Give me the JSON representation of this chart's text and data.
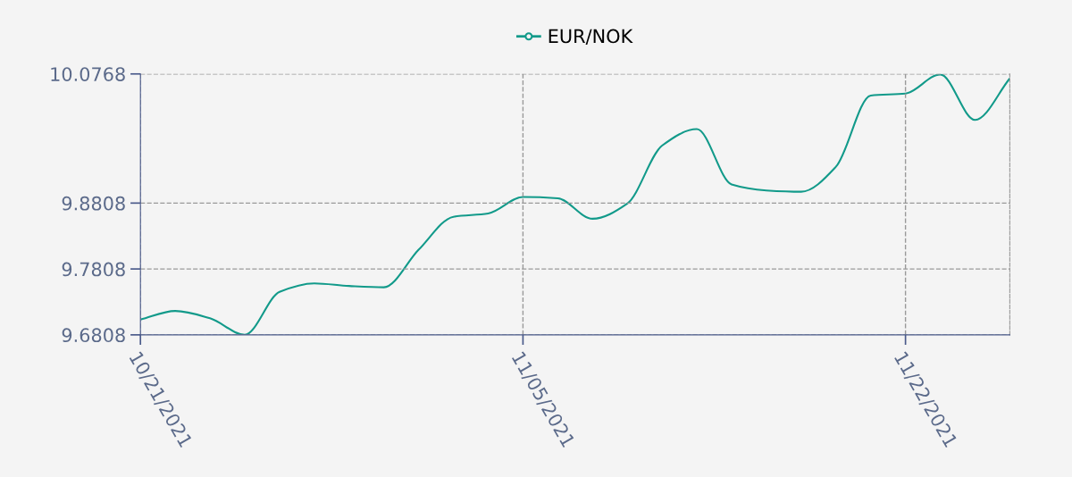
{
  "chart_data": {
    "type": "line",
    "categories": [
      "10/21/2021",
      null,
      null,
      null,
      null,
      null,
      null,
      null,
      null,
      null,
      null,
      "11/05/2021",
      null,
      null,
      null,
      null,
      null,
      null,
      null,
      null,
      null,
      null,
      "11/22/2021",
      null,
      null,
      null
    ],
    "series": [
      {
        "name": "EUR/NOK",
        "color": "#129a8a",
        "values": [
          9.704,
          9.717,
          9.706,
          9.681,
          9.746,
          9.759,
          9.755,
          9.753,
          9.81,
          9.86,
          9.865,
          9.89,
          9.888,
          9.857,
          9.88,
          9.968,
          9.993,
          9.909,
          9.9,
          9.898,
          9.936,
          10.044,
          10.047,
          10.076,
          10.007,
          10.07
        ]
      }
    ],
    "ylim": [
      9.6808,
      10.0768
    ],
    "yticks": [
      9.6808,
      9.7808,
      9.8808,
      10.0768
    ],
    "grid": true,
    "legend": "top",
    "line_style": "solid"
  }
}
